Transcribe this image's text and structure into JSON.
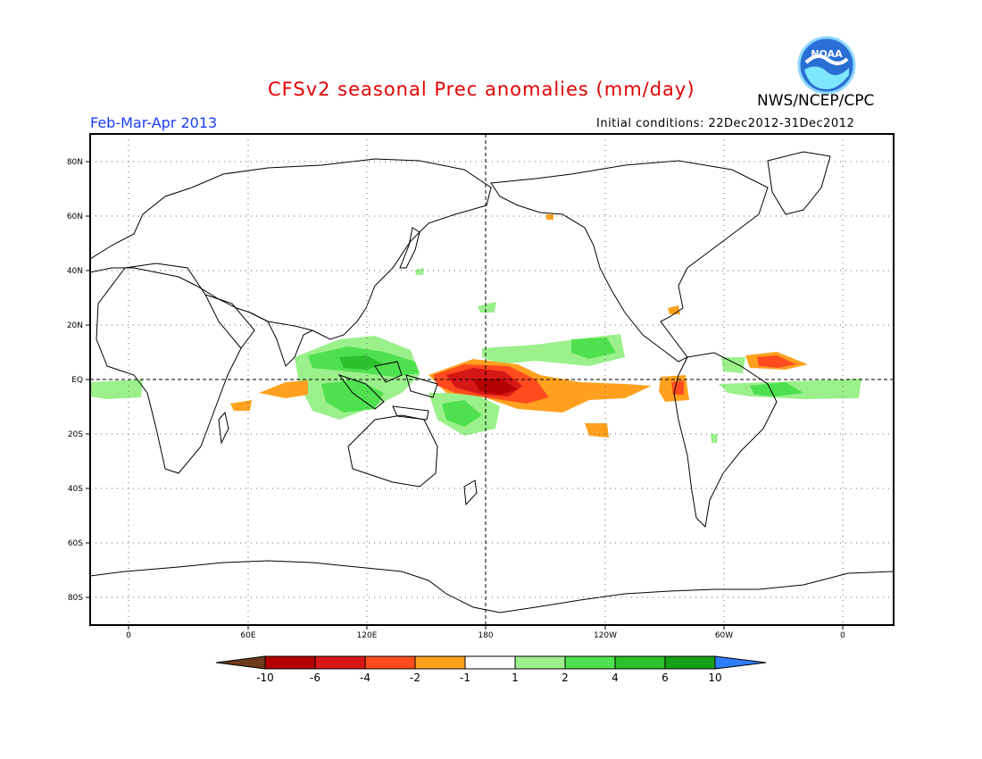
{
  "title": "CFSv2 seasonal Prec anomalies (mm/day)",
  "agency": "NWS/NCEP/CPC",
  "logo_text": "NOAA",
  "period": "Feb-Mar-Apr 2013",
  "initial_conditions": "Initial conditions: 22Dec2012-31Dec2012",
  "lat_labels": [
    "80N",
    "60N",
    "40N",
    "20N",
    "EQ",
    "20S",
    "40S",
    "60S",
    "80S"
  ],
  "lon_labels": [
    "0",
    "60E",
    "120E",
    "180",
    "120W",
    "60W",
    "0"
  ],
  "colorbar": {
    "labels": [
      "-10",
      "-6",
      "-4",
      "-2",
      "-1",
      "1",
      "2",
      "4",
      "6",
      "10"
    ],
    "colors": [
      "#6e3b1a",
      "#b40000",
      "#d71616",
      "#ff4b1e",
      "#ffa11e",
      "#ffffff",
      "#9bf08c",
      "#4fe04f",
      "#2cc02c",
      "#17a017",
      "#2f7dff"
    ]
  }
}
